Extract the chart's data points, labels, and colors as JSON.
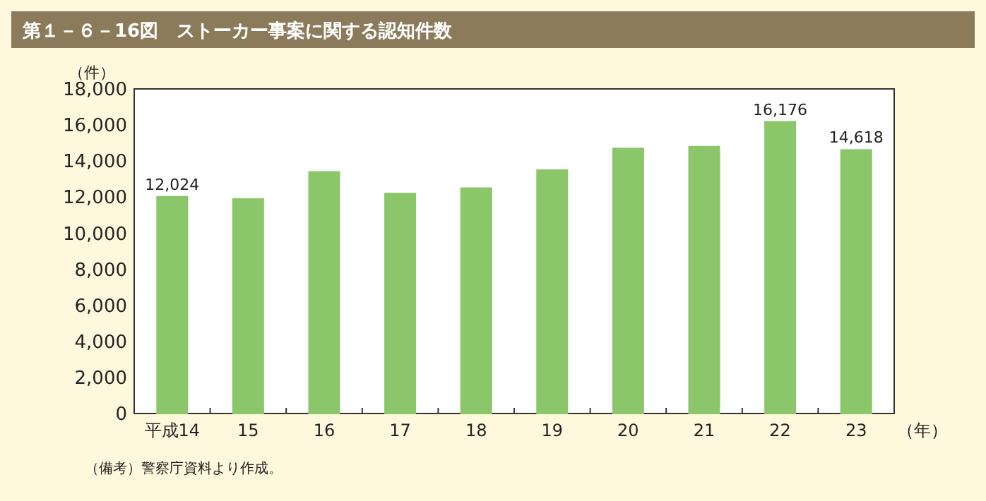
{
  "chart_data": {
    "type": "bar",
    "title": "第１－６－16図　ストーカー事案に関する認知件数",
    "ylabel": "（件）",
    "xlabel": "（年）",
    "categories": [
      "平成14",
      "15",
      "16",
      "17",
      "18",
      "19",
      "20",
      "21",
      "22",
      "23"
    ],
    "values": [
      12024,
      11900,
      13400,
      12200,
      12500,
      13500,
      14700,
      14800,
      16176,
      14618
    ],
    "value_labels": [
      "12,024",
      null,
      null,
      null,
      null,
      null,
      null,
      null,
      "16,176",
      "14,618"
    ],
    "color": "#8cc66a",
    "ylim": [
      0,
      18000
    ],
    "yticks": [
      {
        "value": 0,
        "label": "0"
      },
      {
        "value": 2000,
        "label": "2,000"
      },
      {
        "value": 4000,
        "label": "4,000"
      },
      {
        "value": 6000,
        "label": "6,000"
      },
      {
        "value": 8000,
        "label": "8,000"
      },
      {
        "value": 10000,
        "label": "10,000"
      },
      {
        "value": 12000,
        "label": "12,000"
      },
      {
        "value": 14000,
        "label": "14,000"
      },
      {
        "value": 16000,
        "label": "16,000"
      },
      {
        "value": 18000,
        "label": "18,000"
      }
    ],
    "grid": false,
    "annotations": [
      "（備考）警察庁資料より作成。"
    ]
  }
}
